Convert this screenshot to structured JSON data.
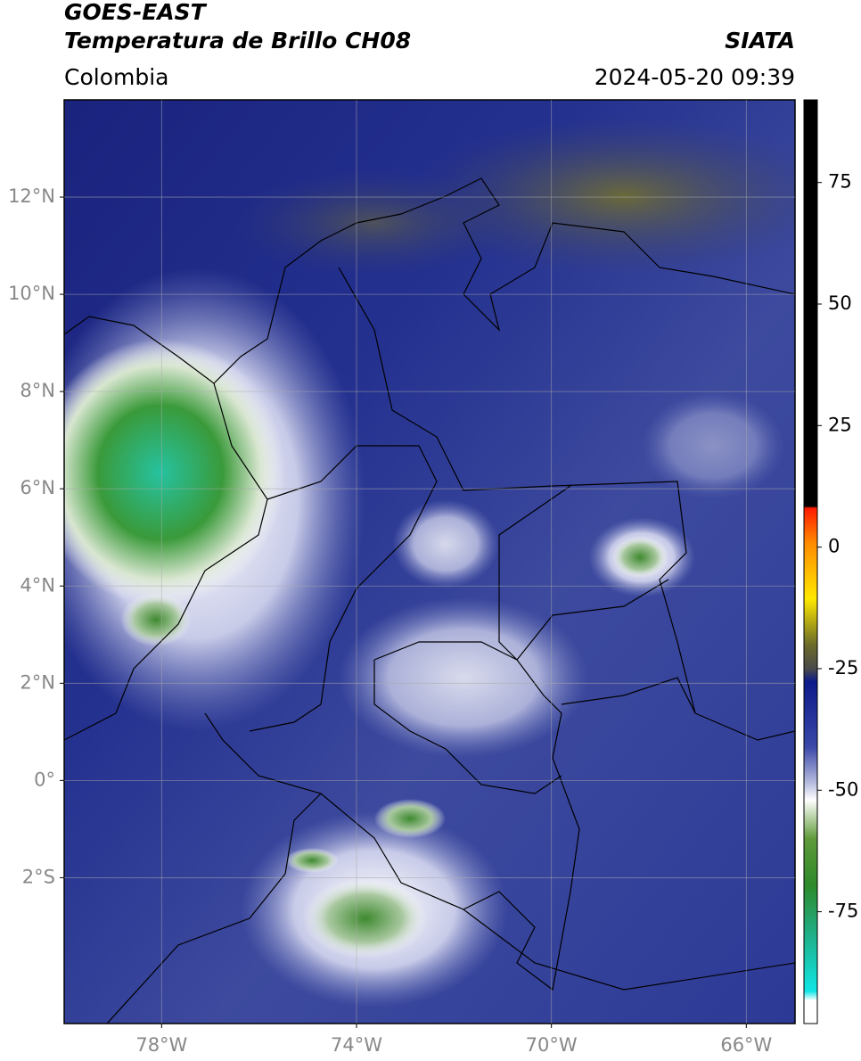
{
  "header": {
    "title": "GOES-EAST",
    "subtitle": "Temperatura de Brillo CH08",
    "source": "SIATA",
    "region": "Colombia",
    "datetime": "2024-05-20 09:39"
  },
  "map": {
    "xlim": [
      -80,
      -65
    ],
    "ylim": [
      -5,
      14
    ],
    "xticks": [
      {
        "value": -78,
        "label": "78°W"
      },
      {
        "value": -74,
        "label": "74°W"
      },
      {
        "value": -70,
        "label": "70°W"
      },
      {
        "value": -66,
        "label": "66°W"
      }
    ],
    "yticks": [
      {
        "value": 12,
        "label": "12°N"
      },
      {
        "value": 10,
        "label": "10°N"
      },
      {
        "value": 8,
        "label": "8°N"
      },
      {
        "value": 6,
        "label": "6°N"
      },
      {
        "value": 4,
        "label": "4°N"
      },
      {
        "value": 2,
        "label": "2°N"
      },
      {
        "value": 0,
        "label": "0°"
      },
      {
        "value": -2,
        "label": "2°S"
      }
    ],
    "grid": true
  },
  "colorbar": {
    "clim": [
      -98,
      92
    ],
    "ticks": [
      75,
      50,
      25,
      0,
      -25,
      -50,
      -75
    ]
  }
}
